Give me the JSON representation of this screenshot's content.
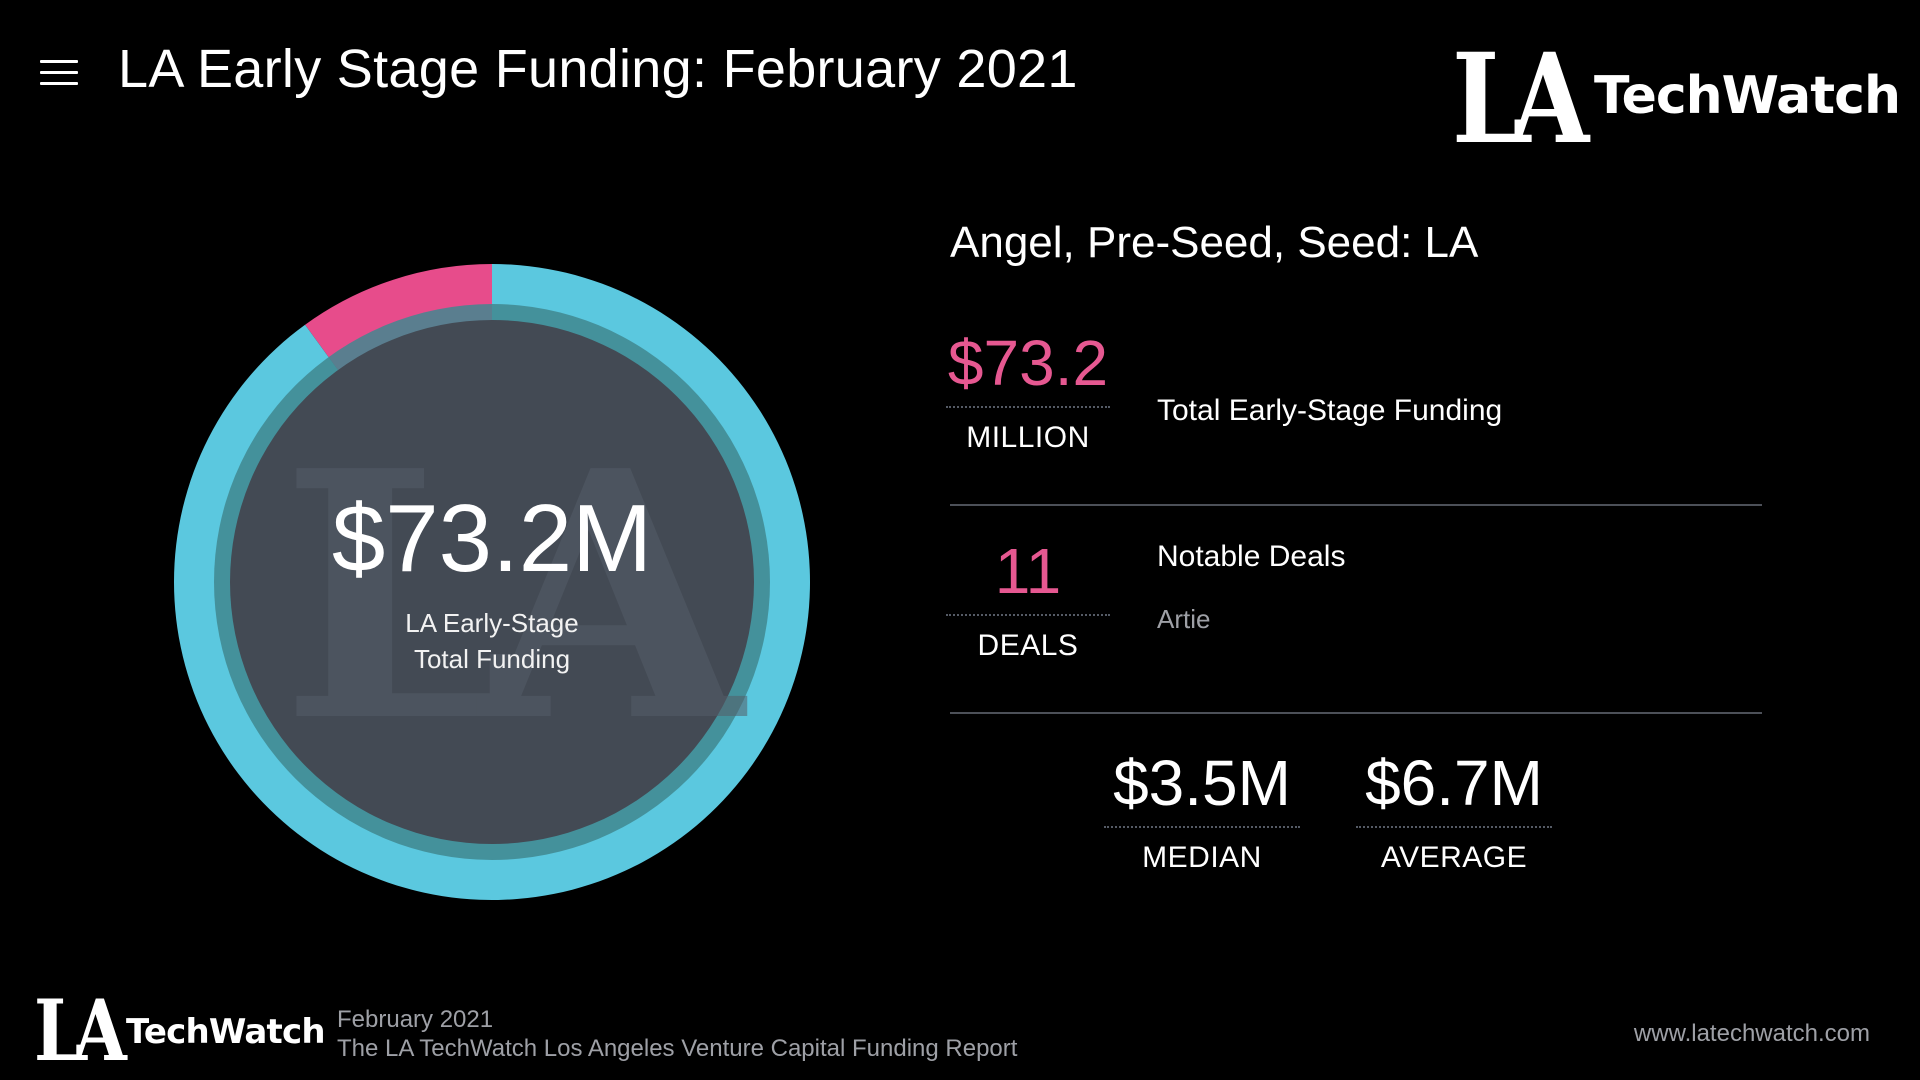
{
  "header": {
    "title": "LA Early Stage Funding: February 2021",
    "menu_icon": "hamburger-menu-icon"
  },
  "brand": {
    "logo_la": "LA",
    "logo_text": "TechWatch"
  },
  "donut": {
    "value": "$73.2M",
    "label_line1": "LA Early-Stage",
    "label_line2": "Total Funding",
    "watermark": "LA"
  },
  "chart_data": {
    "type": "pie",
    "style": "donut",
    "segments": [
      {
        "share": 0.1,
        "color": "#e74c8b"
      },
      {
        "share": 0.9,
        "color": "#5bc8df"
      }
    ]
  },
  "panel": {
    "section_title": "Angel, Pre-Seed, Seed: LA",
    "total": {
      "number": "$73.2",
      "unit": "MILLION",
      "description": "Total Early-Stage Funding"
    },
    "deals": {
      "number": "11",
      "unit": "DEALS",
      "description": "Notable Deals",
      "sub": "Artie"
    },
    "median": {
      "number": "$3.5M",
      "unit": "MEDIAN"
    },
    "average": {
      "number": "$6.7M",
      "unit": "AVERAGE"
    }
  },
  "footer": {
    "logo_la": "LA",
    "logo_text": "TechWatch",
    "date": "February 2021",
    "report": "The LA TechWatch Los Angeles Venture Capital Funding Report",
    "url": "www.latechwatch.com"
  },
  "colors": {
    "accent_pink": "#e65891",
    "accent_blue": "#5bc8df",
    "background": "#000000",
    "donut_center": "#434a54"
  }
}
